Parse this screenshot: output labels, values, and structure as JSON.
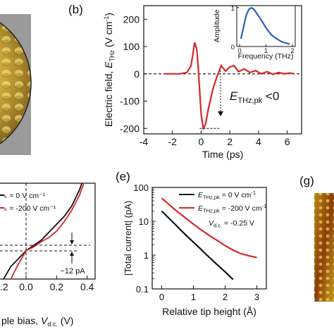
{
  "colors": {
    "red": "#d62728",
    "blue": "#2b5fb8",
    "black": "#111111"
  },
  "chart_data": [
    {
      "type": "image",
      "panel": "a",
      "note_colors": [
        "#e8c84a",
        "#a07a20"
      ]
    },
    {
      "type": "line",
      "panel": "b",
      "panel_label": "(b)",
      "xlabel": "Time (ps)",
      "ylabel_main": "Electric field, ",
      "ylabel_sym": "E",
      "ylabel_sub": "THz",
      "ylabel_unit": " (V cm",
      "ylabel_exp": "-1",
      "ylabel_close": ")",
      "xlim": [
        -4,
        7
      ],
      "ylim": [
        -220,
        250
      ],
      "xticks": [
        -4,
        -2,
        0,
        2,
        4,
        6
      ],
      "yticks": [
        -200,
        -100,
        0,
        100,
        200
      ],
      "series": [
        {
          "color": "#d62728",
          "x": [
            -2.6,
            -1.5,
            -1.0,
            -0.7,
            -0.45,
            -0.3,
            -0.2,
            0.0,
            0.15,
            0.3,
            0.5,
            0.8,
            1.1,
            1.4,
            1.7,
            2.0,
            2.3,
            2.6,
            3.0,
            3.4,
            3.8,
            4.2,
            4.6,
            5.0,
            5.4,
            5.8,
            6.2,
            6.5
          ],
          "y": [
            0,
            0,
            5,
            30,
            115,
            90,
            20,
            -150,
            -200,
            -185,
            -130,
            -60,
            -10,
            30,
            10,
            25,
            30,
            8,
            18,
            5,
            12,
            0,
            8,
            -2,
            5,
            0,
            3,
            0
          ]
        }
      ],
      "annotation": {
        "sym": "E",
        "sub": "THz,pk",
        "text": " <0"
      },
      "inset": {
        "xlabel": "Frequency (THz)",
        "ylabel": "Amplitude",
        "xlim": [
          0,
          2
        ],
        "ylim": [
          0,
          1.05
        ],
        "xticks": [
          0,
          1,
          2
        ],
        "yticks": [
          0,
          1
        ],
        "series": [
          {
            "color": "#2b5fb8",
            "x": [
              0.05,
              0.15,
              0.25,
              0.35,
              0.45,
              0.55,
              0.65,
              0.8,
              1.0,
              1.2,
              1.4,
              1.6,
              1.8,
              1.9
            ],
            "y": [
              0.2,
              0.5,
              0.8,
              0.95,
              1.0,
              0.95,
              0.85,
              0.7,
              0.48,
              0.3,
              0.2,
              0.12,
              0.08,
              0.06
            ]
          }
        ]
      }
    },
    {
      "type": "line",
      "panel": "d",
      "xlabel_text": "ple bias, ",
      "xlabel_sym": "V",
      "xlabel_sub": "d.c.",
      "xlabel_unit": " (V)",
      "xlim": [
        -0.2,
        0.45
      ],
      "xticks": [
        -0.2,
        0.0,
        0.2,
        0.4
      ],
      "xticklabels": [
        ".2",
        "0.0",
        "0.2",
        "0.4"
      ],
      "legend": [
        {
          "label": "ₖ = 0 V cm⁻¹",
          "color": "#111111"
        },
        {
          "label": "ₖ = -200 V cm⁻¹",
          "color": "#d62728"
        }
      ],
      "annotation": "−12 pA",
      "series": [
        {
          "color": "#111111",
          "x": [
            -0.2,
            -0.1,
            0.0,
            0.05,
            0.1,
            0.15,
            0.2,
            0.25,
            0.3,
            0.35,
            0.4,
            0.42
          ],
          "y": [
            -0.85,
            -0.35,
            -0.05,
            0.05,
            0.15,
            0.3,
            0.45,
            0.6,
            0.8,
            1.1,
            1.5,
            1.65
          ]
        },
        {
          "color": "#d62728",
          "x": [
            -0.2,
            -0.12,
            -0.05,
            0.0,
            0.05,
            0.1,
            0.15,
            0.2,
            0.25,
            0.3,
            0.35,
            0.4,
            0.42
          ],
          "y": [
            -0.95,
            -0.7,
            -0.3,
            -0.05,
            0.02,
            0.12,
            0.2,
            0.32,
            0.5,
            0.72,
            1.0,
            1.4,
            1.6
          ]
        }
      ]
    },
    {
      "type": "line",
      "panel": "e",
      "panel_label": "(e)",
      "xlabel": "Relative tip height (Å)",
      "ylabel": "|Total current| (pA)",
      "yscale": "log",
      "xlim": [
        -0.3,
        3.3
      ],
      "ylim": [
        0.1,
        100
      ],
      "xticks": [
        0,
        1,
        2,
        3
      ],
      "yticks": [
        0.1,
        1,
        10,
        100
      ],
      "yticklabels": [
        "0.1",
        "1",
        "10",
        "100"
      ],
      "legend": [
        {
          "sym": "E",
          "sub": "THz,pk",
          "value": " = 0 V cm",
          "exp": "-1",
          "color": "#111111"
        },
        {
          "sym": "E",
          "sub": "THz,pk",
          "value": " = -200 V cm",
          "exp": "-1",
          "color": "#d62728"
        }
      ],
      "note": {
        "sym": "V",
        "sub": "d.c.",
        "value": " = -0.25 V"
      },
      "series": [
        {
          "color": "#111111",
          "x": [
            0.0,
            0.2,
            0.4,
            0.6,
            0.8,
            1.0,
            1.2,
            1.4,
            1.6,
            1.8,
            2.0,
            2.2,
            2.25
          ],
          "y": [
            20,
            13,
            8.5,
            5.5,
            3.6,
            2.4,
            1.6,
            1.05,
            0.7,
            0.47,
            0.32,
            0.21,
            0.19
          ]
        },
        {
          "color": "#d62728",
          "x": [
            0.0,
            0.25,
            0.5,
            0.75,
            1.0,
            1.25,
            1.5,
            1.75,
            2.0,
            2.25,
            2.5,
            2.75,
            3.0
          ],
          "y": [
            48,
            30,
            19,
            12.5,
            8.2,
            5.5,
            3.8,
            2.7,
            1.9,
            1.4,
            1.1,
            0.95,
            0.85
          ]
        }
      ]
    },
    {
      "type": "image",
      "panel": "g",
      "panel_label": "(g)"
    }
  ]
}
